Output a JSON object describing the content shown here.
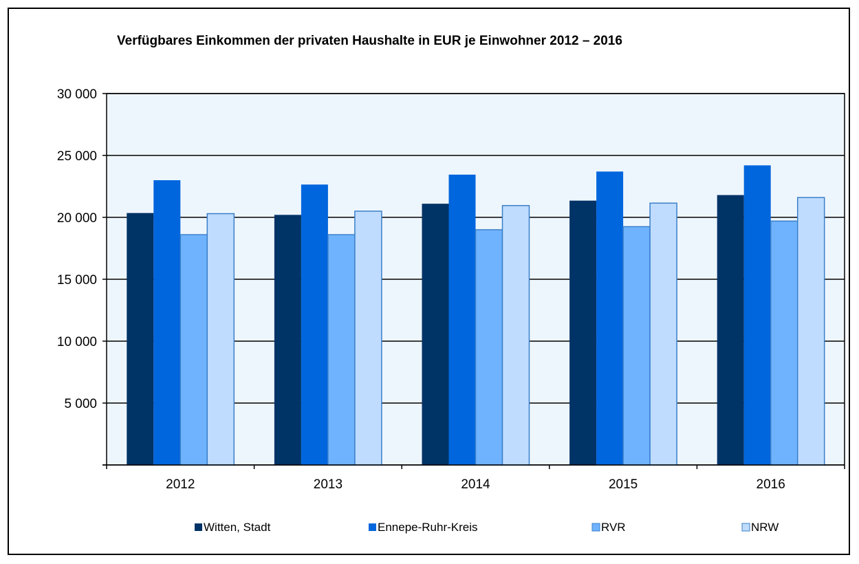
{
  "chart_data": {
    "type": "bar",
    "title": "Verfügbares Einkommen der privaten Haushalte in EUR je Einwohner 2012 – 2016",
    "xlabel": "",
    "ylabel": "",
    "categories": [
      "2012",
      "2013",
      "2014",
      "2015",
      "2016"
    ],
    "ylim": [
      0,
      30000
    ],
    "yticks": [
      0,
      5000,
      10000,
      15000,
      20000,
      25000,
      30000
    ],
    "ytick_labels": [
      "",
      "5 000",
      "10 000",
      "15 000",
      "20 000",
      "25 000",
      "30 000"
    ],
    "grid": true,
    "legend_position": "bottom",
    "plot_background": "#eef6fd",
    "series": [
      {
        "name": "Witten, Stadt",
        "color": "#003366",
        "values": [
          20350,
          20200,
          21100,
          21350,
          21800
        ]
      },
      {
        "name": "Ennepe-Ruhr-Kreis",
        "color": "#0066dd",
        "values": [
          23000,
          22650,
          23450,
          23700,
          24200
        ]
      },
      {
        "name": "RVR",
        "color": "#6fb3ff",
        "values": [
          18600,
          18600,
          19000,
          19250,
          19700
        ]
      },
      {
        "name": "NRW",
        "color": "#bfdcff",
        "values": [
          20300,
          20500,
          20950,
          21150,
          21600
        ]
      }
    ]
  }
}
